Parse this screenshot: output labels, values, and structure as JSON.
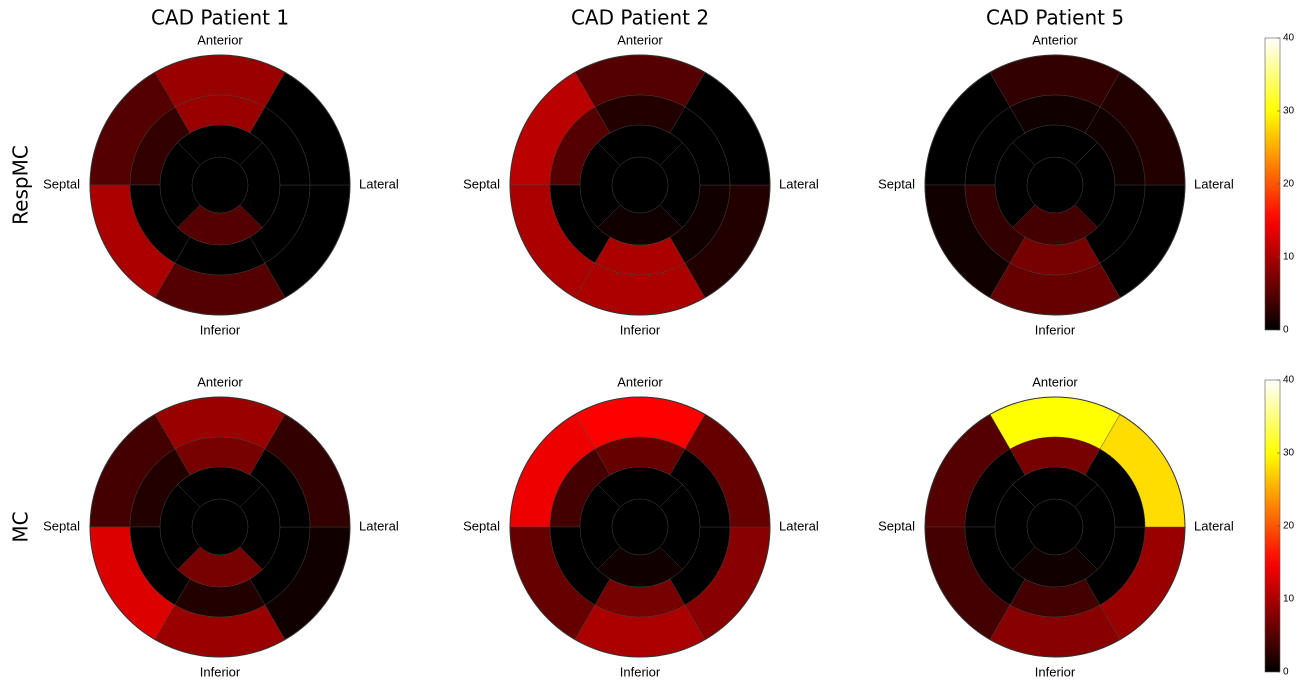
{
  "chart_data": [
    {
      "type": "bullseye",
      "title": "CAD Patient 1",
      "row_label": "RespMC",
      "labels": {
        "top": "Anterior",
        "left": "Septal",
        "right": "Lateral",
        "bottom": "Inferior"
      },
      "colormap": "hot",
      "clim": [
        0,
        40
      ],
      "segments": {
        "basal": [
          9,
          5,
          10,
          5,
          0,
          0
        ],
        "mid": [
          9,
          3,
          0,
          0,
          0,
          0
        ],
        "apical": [
          0,
          0,
          5,
          0
        ],
        "apex": 0
      }
    },
    {
      "type": "bullseye",
      "title": "CAD Patient 2",
      "labels": {
        "top": "Anterior",
        "left": "Septal",
        "right": "Lateral",
        "bottom": "Inferior"
      },
      "colormap": "hot",
      "clim": [
        0,
        40
      ],
      "segments": {
        "basal": [
          5,
          11,
          10,
          10,
          2,
          0
        ],
        "mid": [
          2,
          5,
          0,
          10,
          1,
          0
        ],
        "apical": [
          0,
          0,
          1,
          0
        ],
        "apex": 0
      }
    },
    {
      "type": "bullseye",
      "title": "CAD Patient 5",
      "labels": {
        "top": "Anterior",
        "left": "Septal",
        "right": "Lateral",
        "bottom": "Inferior"
      },
      "colormap": "hot",
      "clim": [
        0,
        40
      ],
      "colorbar": true,
      "cticks": [
        0,
        10,
        20,
        30,
        40
      ],
      "segments": {
        "basal": [
          3,
          0,
          1,
          6,
          0,
          2
        ],
        "mid": [
          1,
          0,
          3,
          7,
          0,
          1
        ],
        "apical": [
          0,
          0,
          4,
          0
        ],
        "apex": 0
      }
    },
    {
      "type": "bullseye",
      "row_label": "MC",
      "labels": {
        "top": "Anterior",
        "left": "Septal",
        "right": "Lateral",
        "bottom": "Inferior"
      },
      "colormap": "hot",
      "clim": [
        0,
        40
      ],
      "segments": {
        "basal": [
          9,
          4,
          13,
          9,
          1,
          3
        ],
        "mid": [
          7,
          2,
          0,
          2,
          0,
          0
        ],
        "apical": [
          0,
          0,
          7,
          0
        ],
        "apex": 0
      }
    },
    {
      "type": "bullseye",
      "labels": {
        "top": "Anterior",
        "left": "Septal",
        "right": "Lateral",
        "bottom": "Inferior"
      },
      "colormap": "hot",
      "clim": [
        0,
        40
      ],
      "segments": {
        "basal": [
          15,
          14,
          6,
          10,
          8,
          6
        ],
        "mid": [
          6,
          4,
          0,
          7,
          0,
          0
        ],
        "apical": [
          0,
          0,
          1,
          0
        ],
        "apex": 0
      }
    },
    {
      "type": "bullseye",
      "labels": {
        "top": "Anterior",
        "left": "Septal",
        "right": "Lateral",
        "bottom": "Inferior"
      },
      "colormap": "hot",
      "clim": [
        0,
        40
      ],
      "colorbar": true,
      "cticks": [
        0,
        10,
        20,
        30,
        40
      ],
      "segments": {
        "basal": [
          30,
          5,
          4,
          8,
          9,
          28
        ],
        "mid": [
          7,
          0,
          0,
          4,
          0,
          0
        ],
        "apical": [
          0,
          0,
          1,
          0
        ],
        "apex": 0
      }
    }
  ]
}
